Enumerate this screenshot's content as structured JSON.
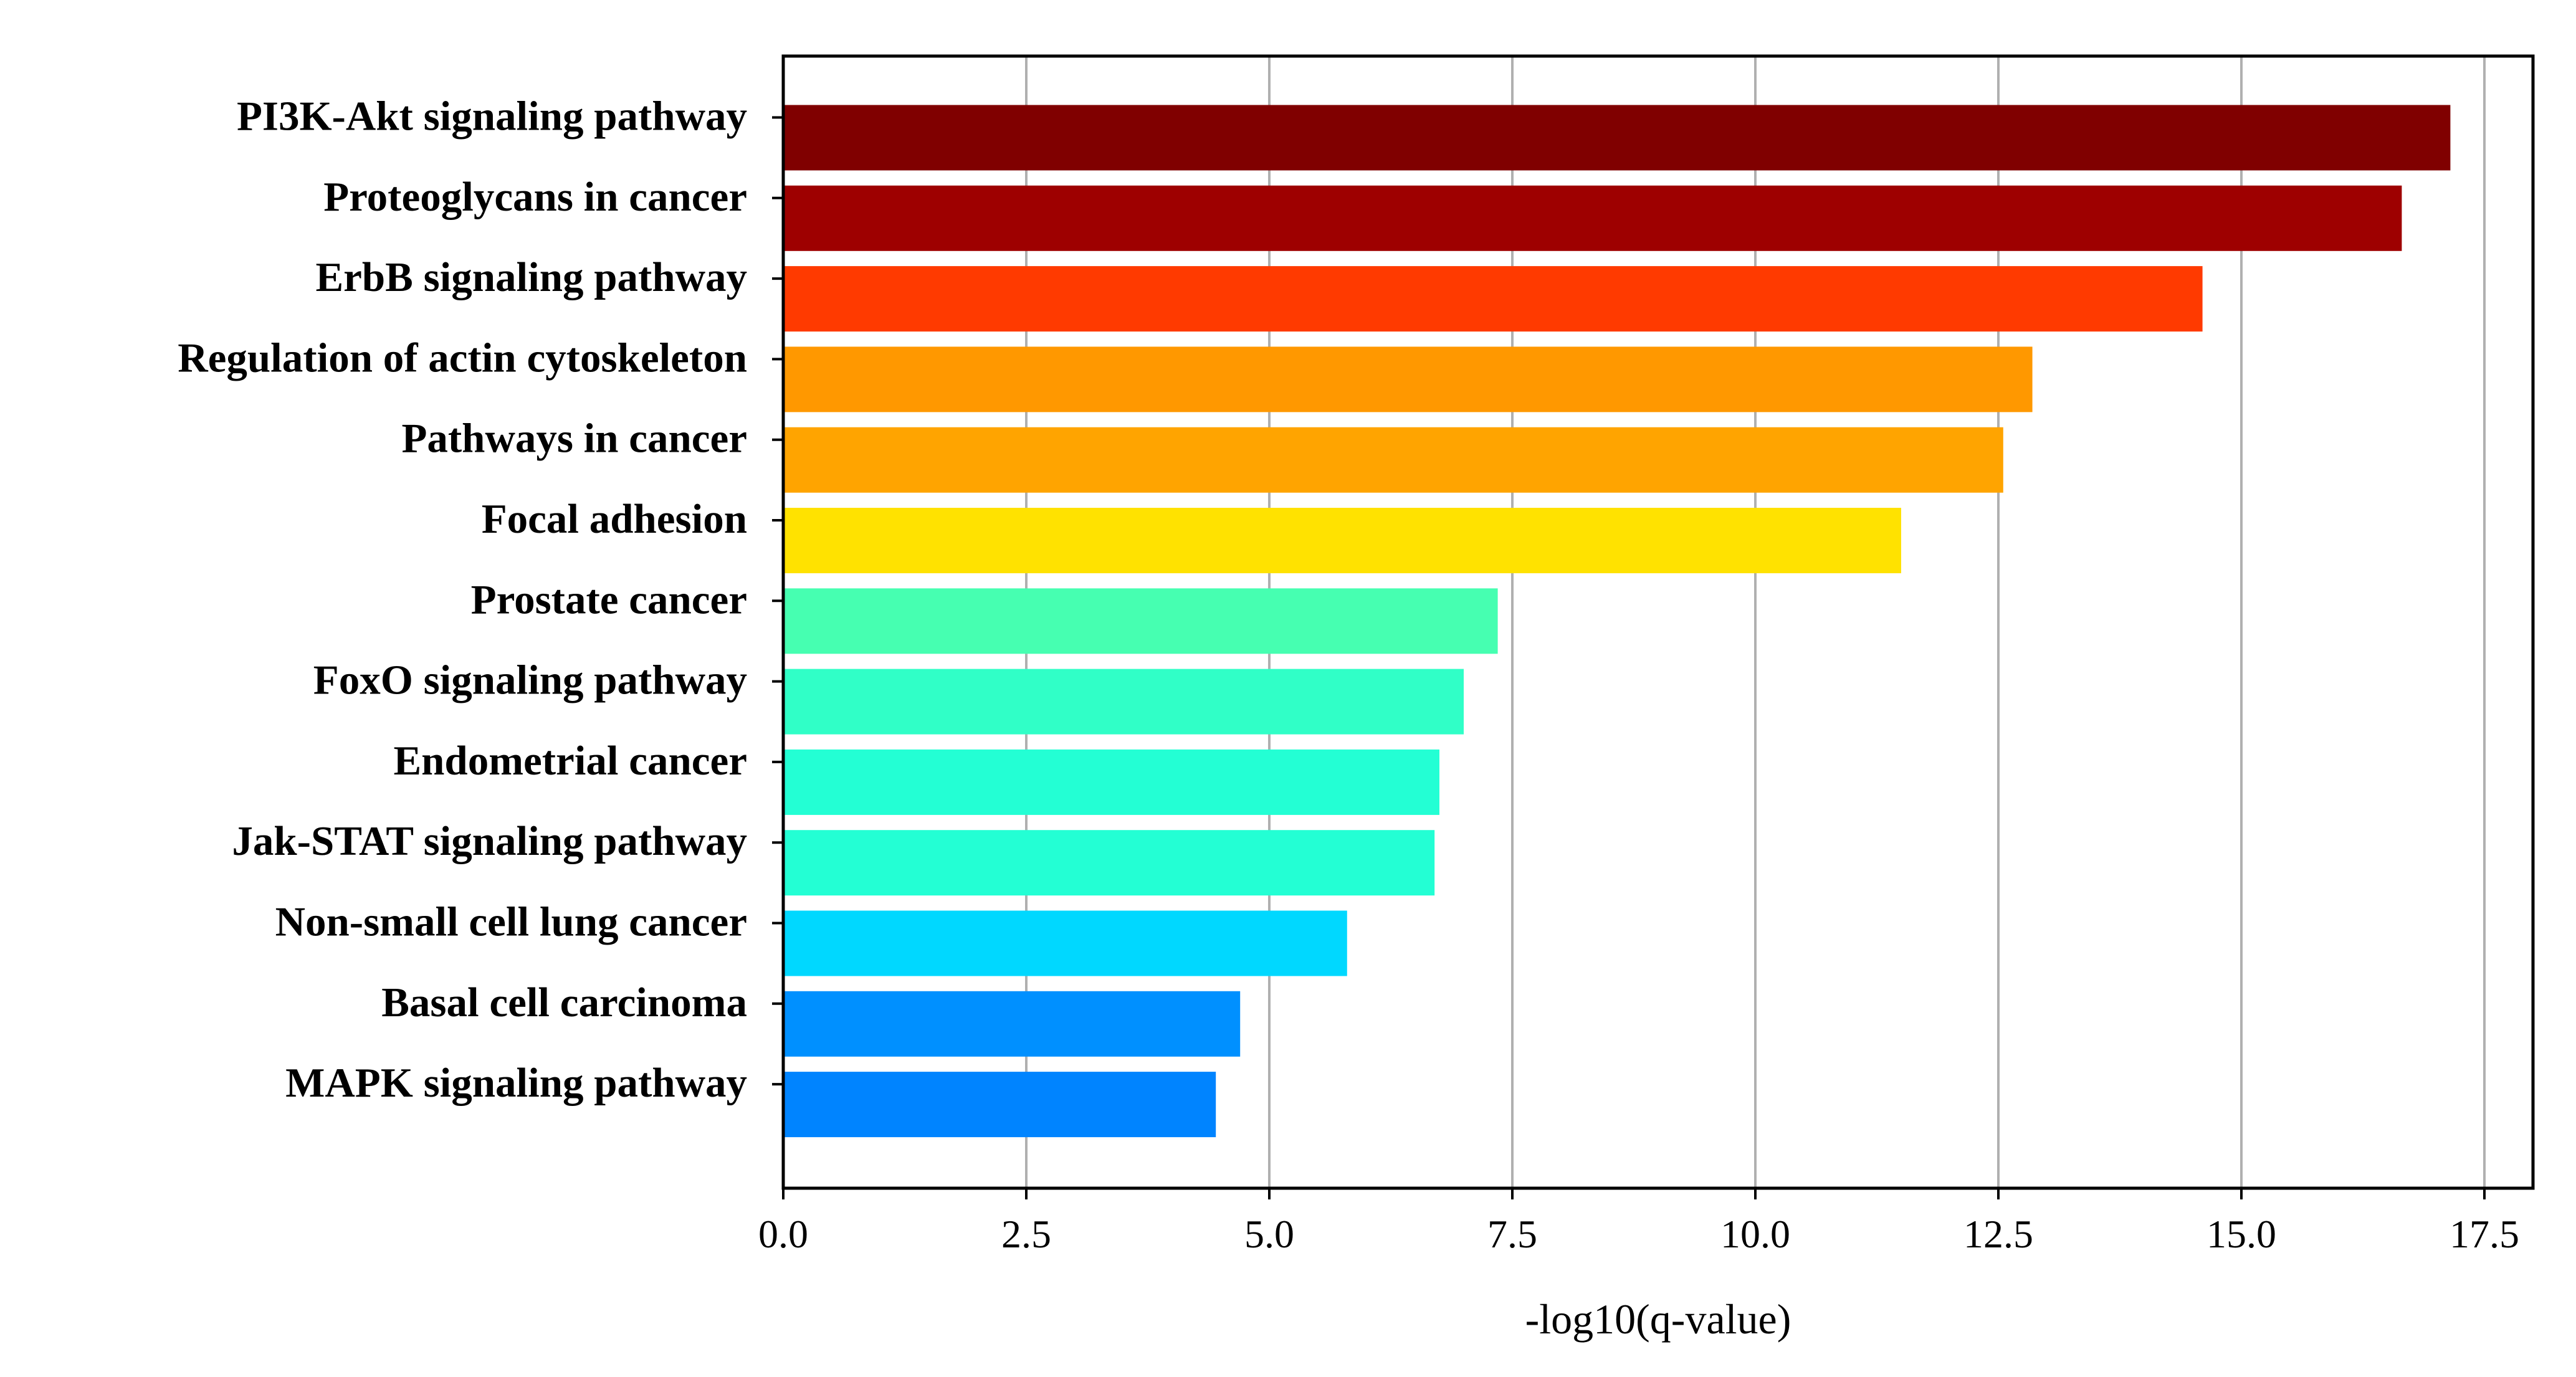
{
  "chart_data": {
    "type": "bar",
    "orientation": "horizontal",
    "title": "",
    "xlabel": "-log10(q-value)",
    "ylabel": "",
    "xlim": [
      0,
      18.0
    ],
    "grid": "x",
    "legend": "none",
    "xticks": [
      "0.0",
      "2.5",
      "5.0",
      "7.5",
      "10.0",
      "12.5",
      "15.0",
      "17.5"
    ],
    "xtick_values": [
      0,
      2.5,
      5.0,
      7.5,
      10.0,
      12.5,
      15.0,
      17.5
    ],
    "categories": [
      "PI3K-Akt signaling pathway",
      "Proteoglycans in cancer",
      "ErbB signaling pathway",
      "Regulation of actin cytoskeleton",
      "Pathways in cancer",
      "Focal adhesion",
      "Prostate cancer",
      "FoxO signaling pathway",
      "Endometrial cancer",
      "Jak-STAT signaling pathway",
      "Non-small cell lung cancer",
      "Basal cell carcinoma",
      "MAPK signaling pathway"
    ],
    "values": [
      17.15,
      16.65,
      14.6,
      12.85,
      12.55,
      11.5,
      7.35,
      7.0,
      6.75,
      6.7,
      5.8,
      4.7,
      4.45
    ],
    "colors": [
      "#800000",
      "#9e0000",
      "#ff3a00",
      "#ff9800",
      "#ffa400",
      "#ffe200",
      "#46ffb1",
      "#30ffc7",
      "#23ffd4",
      "#23ffd4",
      "#00d8ff",
      "#0090ff",
      "#0084ff"
    ]
  }
}
